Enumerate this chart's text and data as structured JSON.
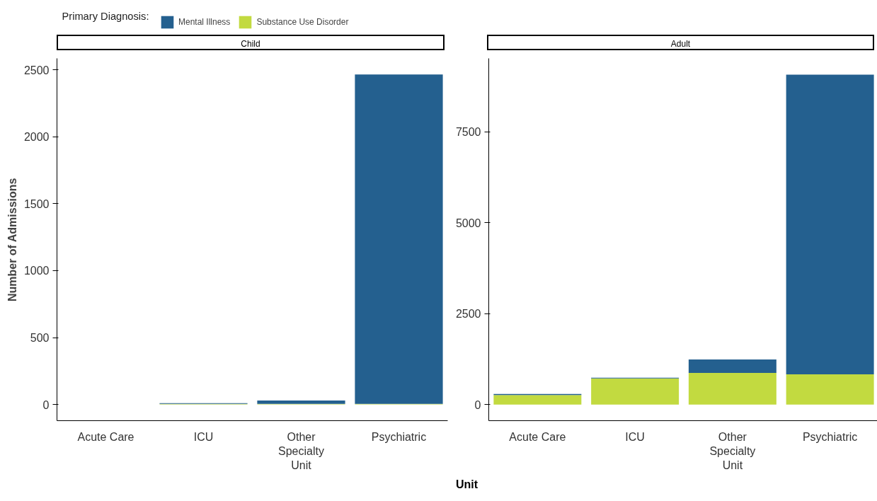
{
  "chart_data": [
    {
      "type": "bar",
      "title": "Child",
      "ylabel": "Number of Admissions",
      "legend_title": "Primary Diagnosis:",
      "legend": "top",
      "stacked": true,
      "grid": false,
      "categories": [
        "Acute Care",
        "ICU",
        "Other Specialty Unit",
        "Psychiatric"
      ],
      "ylim": [
        -121,
        2585
      ],
      "yticks": [
        0,
        500,
        1000,
        1500,
        2000,
        2500
      ],
      "series": [
        {
          "name": "Substance Use Disorder",
          "color": "#c2da40",
          "values": [
            0,
            5,
            5,
            5
          ]
        },
        {
          "name": "Mental Illness",
          "color": "#24608f",
          "values": [
            0,
            5,
            25,
            2460
          ]
        }
      ]
    },
    {
      "type": "bar",
      "title": "Adult",
      "xlabel": "Unit",
      "stacked": true,
      "grid": false,
      "categories": [
        "Acute Care",
        "ICU",
        "Other Specialty Unit",
        "Psychiatric"
      ],
      "ylim": [
        -444,
        9518
      ],
      "yticks": [
        0,
        2500,
        5000,
        7500
      ],
      "series": [
        {
          "name": "Substance Use Disorder",
          "color": "#c2da40",
          "values": [
            260,
            720,
            870,
            830
          ]
        },
        {
          "name": "Mental Illness",
          "color": "#24608f",
          "values": [
            30,
            20,
            370,
            8240
          ]
        }
      ]
    }
  ]
}
